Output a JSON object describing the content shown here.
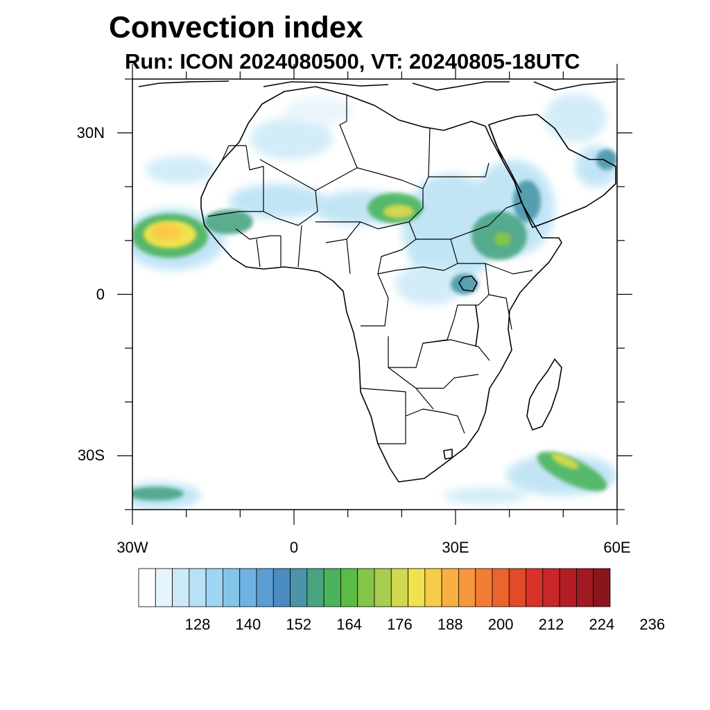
{
  "title": "Convection index",
  "subtitle": "Run: ICON 2024080500,  VT: 20240805-18UTC",
  "map": {
    "lat_ticks": [
      {
        "value": 30,
        "label": "30N"
      },
      {
        "value": 0,
        "label": "0"
      },
      {
        "value": -30,
        "label": "30S"
      }
    ],
    "lon_ticks": [
      {
        "value": -30,
        "label": "30W"
      },
      {
        "value": 0,
        "label": "0"
      },
      {
        "value": 30,
        "label": "30E"
      },
      {
        "value": 60,
        "label": "60E"
      }
    ],
    "extent": {
      "lon_min": -30,
      "lon_max": 60,
      "lat_min": -40,
      "lat_max": 40
    }
  },
  "colorbar": {
    "colors": [
      "#ffffff",
      "#e6f4fb",
      "#cbe9f7",
      "#b8e1f5",
      "#9fd5f2",
      "#86c5ea",
      "#6fb3e2",
      "#5a9ed5",
      "#4a8cc2",
      "#4a96a8",
      "#4aa482",
      "#4ab35c",
      "#5cbb46",
      "#84c54a",
      "#a8cd4e",
      "#cfd850",
      "#f1e14d",
      "#f9cb4a",
      "#f9b042",
      "#f5973c",
      "#f17d34",
      "#ec632d",
      "#e24a2a",
      "#d83229",
      "#c72729",
      "#b31e26",
      "#9f1a22",
      "#8b151d"
    ],
    "labels": [
      "128",
      "140",
      "152",
      "164",
      "176",
      "188",
      "200",
      "212",
      "224",
      "236"
    ]
  }
}
